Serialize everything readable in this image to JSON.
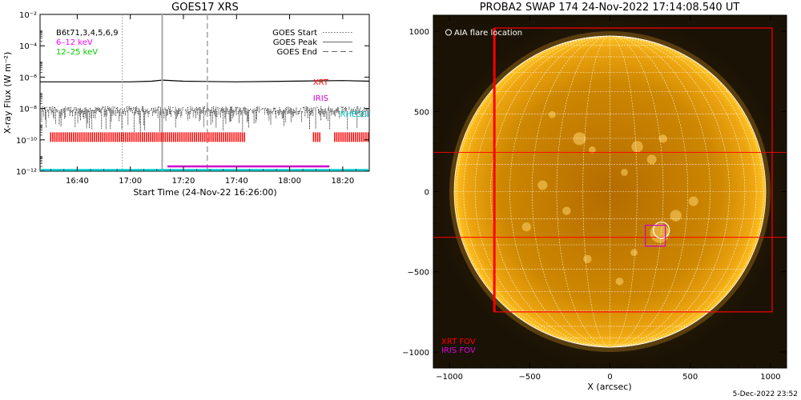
{
  "chart_data": [
    {
      "type": "line",
      "title": "GOES17 XRS",
      "xlabel": "Start Time (24-Nov-22 16:26:00)",
      "ylabel": "X-ray Flux (W m⁻²)",
      "y_scale": "log",
      "ylim": [
        "1e-12",
        "1e-2"
      ],
      "xlim": [
        "16:26",
        "18:30"
      ],
      "ytick_labels": [
        {
          "value": "1e-12",
          "label": "10⁻¹²"
        },
        {
          "value": "1e-10",
          "label": "10⁻¹⁰"
        },
        {
          "value": "1e-8",
          "label": "10⁻⁸"
        },
        {
          "value": "1e-6",
          "label": "10⁻⁶"
        },
        {
          "value": "1e-4",
          "label": "10⁻⁴"
        },
        {
          "value": "1e-2",
          "label": "10⁻²"
        }
      ],
      "xtick_labels": [
        "16:40",
        "17:00",
        "17:20",
        "17:40",
        "18:00",
        "18:20"
      ],
      "legend_left": [
        {
          "label": "B6t71,3,4,5,6,9",
          "color": "#000000"
        },
        {
          "label": "6–12 keV",
          "color": "#ff00ff"
        },
        {
          "label": "12–25 keV",
          "color": "#00cc00"
        }
      ],
      "legend_right": [
        {
          "label": "GOES Start",
          "style": "dotted"
        },
        {
          "label": "GOES Peak",
          "style": "solid"
        },
        {
          "label": "GOES End",
          "style": "dashed"
        }
      ],
      "markers": {
        "goes_start": "16:57",
        "goes_peak": "17:12",
        "goes_end": "17:29"
      },
      "series": [
        {
          "name": "XRT",
          "color": "#ff0000"
        },
        {
          "name": "IRIS",
          "color": "#cc00cc"
        },
        {
          "name": "RHESSI",
          "color": "#00cccc"
        }
      ],
      "long_channel": {
        "x": [
          "16:26",
          "17:00",
          "17:08",
          "17:12",
          "17:20",
          "17:40",
          "18:00",
          "18:20",
          "18:30"
        ],
        "y": [
          "5e-7",
          "5e-7",
          "5.5e-7",
          "6.5e-7",
          "5.5e-7",
          "5e-7",
          "5.5e-7",
          "6e-7",
          "5.5e-7"
        ]
      },
      "short_channel": {
        "level": "1e-8",
        "range": [
          "3e-10",
          "2e-8"
        ],
        "style": "noisy dotted"
      },
      "xrt_intervals": [
        [
          "16:30",
          "17:43"
        ],
        [
          "18:09",
          "18:12"
        ],
        [
          "18:17",
          "18:30"
        ]
      ],
      "iris_interval": [
        "17:14",
        "18:15"
      ],
      "iris_level": "1e-12",
      "rhessi_level": "1e-12",
      "xrt_bar_level": "1.5e-10"
    },
    {
      "type": "image",
      "title": "PROBA2 SWAP 174 24-Nov-2022 17:14:08.540 UT",
      "xlabel": "X (arcsec)",
      "xlim": [
        -1100,
        1100
      ],
      "ylim": [
        -1100,
        1100
      ],
      "xticks": [
        -1000,
        -500,
        0,
        500,
        1000
      ],
      "yticks": [
        -1000,
        -500,
        0,
        500,
        1000
      ],
      "xtick_labels": [
        "−1000",
        "−500",
        "0",
        "500",
        "1000"
      ],
      "ytick_labels": [
        "−1000",
        "−500",
        "0",
        "500",
        "1000"
      ],
      "solar_radius": 970,
      "flare_location": {
        "x": 320,
        "y": -240,
        "label": "AIA flare location"
      },
      "xrt_fov": {
        "x": [
          -720,
          1010
        ],
        "y": [
          -750,
          1020
        ],
        "label": "XRT FOV"
      },
      "xrt_lines_y": [
        245,
        -285
      ],
      "iris_fov": {
        "x": [
          220,
          345
        ],
        "y": [
          -340,
          -210
        ],
        "label": "IRIS FOV"
      },
      "colors": {
        "xrt": "#ff0000",
        "iris": "#cc00cc",
        "sun_core": "#c27a00",
        "sun_edge": "#ffbf1a"
      }
    }
  ],
  "footer": {
    "date": "5-Dec-2022 23:52"
  }
}
